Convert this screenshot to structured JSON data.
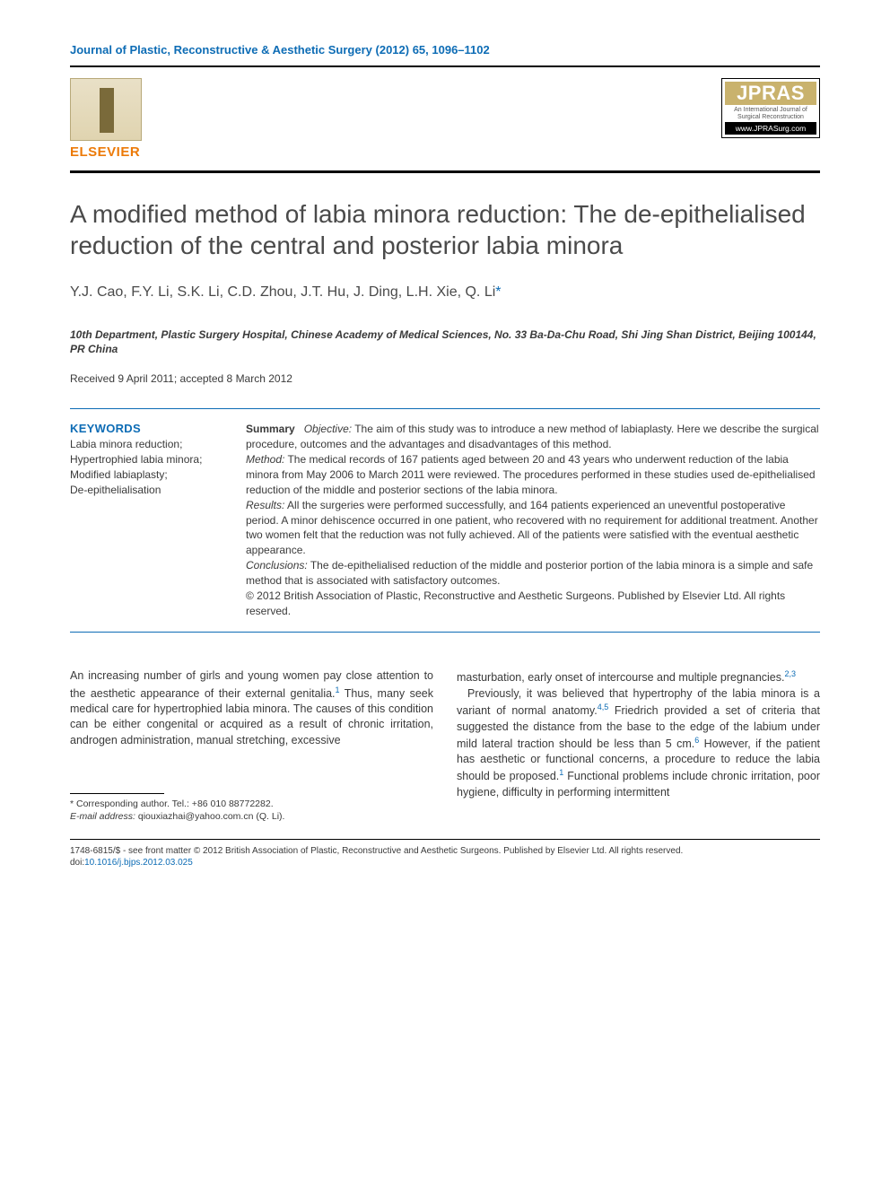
{
  "journal_line": "Journal of Plastic, Reconstructive & Aesthetic Surgery (2012) 65, 1096–1102",
  "publisher_logo": {
    "name": "ELSEVIER"
  },
  "journal_logo": {
    "acronym": "JPRAS",
    "subtitle": "An International Journal of Surgical Reconstruction",
    "url": "www.JPRASurg.com"
  },
  "title": "A modified method of labia minora reduction: The de-epithelialised reduction of the central and posterior labia minora",
  "authors": "Y.J. Cao, F.Y. Li, S.K. Li, C.D. Zhou, J.T. Hu, J. Ding, L.H. Xie, Q. Li",
  "corr_marker": "*",
  "affiliation": "10th Department, Plastic Surgery Hospital, Chinese Academy of Medical Sciences, No. 33 Ba-Da-Chu Road, Shi Jing Shan District, Beijing 100144, PR China",
  "dates": "Received 9 April 2011; accepted 8 March 2012",
  "keywords": {
    "heading": "KEYWORDS",
    "items": "Labia minora reduction;\nHypertrophied labia minora;\nModified labiaplasty;\nDe-epithelialisation"
  },
  "abstract": {
    "summary_label": "Summary",
    "objective_label": "Objective:",
    "objective": " The aim of this study was to introduce a new method of labiaplasty. Here we describe the surgical procedure, outcomes and the advantages and disadvantages of this method.",
    "method_label": "Method:",
    "method": " The medical records of 167 patients aged between 20 and 43 years who underwent reduction of the labia minora from May 2006 to March 2011 were reviewed. The procedures performed in these studies used de-epithelialised reduction of the middle and posterior sections of the labia minora.",
    "results_label": "Results:",
    "results": " All the surgeries were performed successfully, and 164 patients experienced an uneventful postoperative period. A minor dehiscence occurred in one patient, who recovered with no requirement for additional treatment. Another two women felt that the reduction was not fully achieved. All of the patients were satisfied with the eventual aesthetic appearance.",
    "conclusions_label": "Conclusions:",
    "conclusions": " The de-epithelialised reduction of the middle and posterior portion of the labia minora is a simple and safe method that is associated with satisfactory outcomes.",
    "copyright": "© 2012 British Association of Plastic, Reconstructive and Aesthetic Surgeons. Published by Elsevier Ltd. All rights reserved."
  },
  "body": {
    "col1_p1a": "An increasing number of girls and young women pay close attention to the aesthetic appearance of their external genitalia.",
    "col1_ref1": "1",
    "col1_p1b": " Thus, many seek medical care for hypertrophied labia minora. The causes of this condition can be either congenital or acquired as a result of chronic irritation, androgen administration, manual stretching, excessive",
    "col2_p1a": "masturbation, early onset of intercourse and multiple pregnancies.",
    "col2_ref23": "2,3",
    "col2_p2a": "Previously, it was believed that hypertrophy of the labia minora is a variant of normal anatomy.",
    "col2_ref45": "4,5",
    "col2_p2b": " Friedrich provided a set of criteria that suggested the distance from the base to the edge of the labium under mild lateral traction should be less than 5 cm.",
    "col2_ref6": "6",
    "col2_p2c": " However, if the patient has aesthetic or functional concerns, a procedure to reduce the labia should be proposed.",
    "col2_ref1b": "1",
    "col2_p2d": " Functional problems include chronic irritation, poor hygiene, difficulty in performing intermittent"
  },
  "correspondence": {
    "line1": "* Corresponding author. Tel.: +86 010 88772282.",
    "line2_label": "E-mail address:",
    "line2_email": " qiouxiazhai@yahoo.com.cn ",
    "line2_tail": "(Q. Li)."
  },
  "footer": {
    "line1": "1748-6815/$ - see front matter © 2012 British Association of Plastic, Reconstructive and Aesthetic Surgeons. Published by Elsevier Ltd. All rights reserved.",
    "doi_label": "doi:",
    "doi": "10.1016/j.bjps.2012.03.025"
  },
  "colors": {
    "link_blue": "#0d6cb5",
    "elsevier_orange": "#ec7a08",
    "text": "#3a3a3a",
    "jpras_gold": "#c9b26d"
  }
}
